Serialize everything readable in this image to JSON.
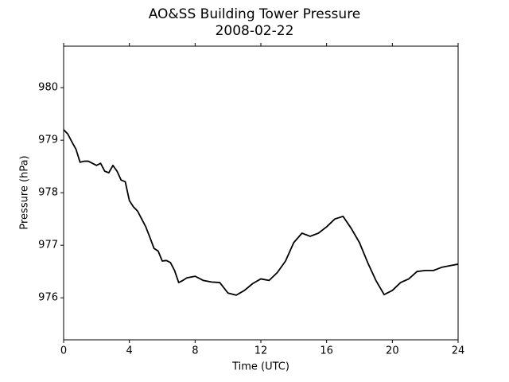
{
  "chart_data": {
    "type": "line",
    "title": "AO&SS Building Tower Pressure",
    "subtitle": "2008-02-22",
    "x_label": "Time (UTC)",
    "y_label": "Pressure (hPa)",
    "x": [
      0,
      0.25,
      0.5,
      0.75,
      1,
      1.25,
      1.5,
      2,
      2.25,
      2.5,
      2.75,
      3,
      3.25,
      3.5,
      3.75,
      4,
      4.25,
      4.5,
      4.75,
      5,
      5.25,
      5.5,
      5.75,
      6,
      6.25,
      6.5,
      6.75,
      7,
      7.25,
      7.5,
      8,
      8.5,
      9,
      9.5,
      10,
      10.5,
      11,
      11.5,
      12,
      12.5,
      13,
      13.5,
      14,
      14.5,
      15,
      15.5,
      16,
      16.5,
      17,
      17.5,
      18,
      18.5,
      19,
      19.5,
      20,
      20.5,
      21,
      21.5,
      22,
      22.5,
      23,
      23.5,
      24
    ],
    "series": [
      {
        "name": "Pressure",
        "color": "#000000",
        "values": [
          979.2,
          979.12,
          978.97,
          978.83,
          978.58,
          978.6,
          978.6,
          978.52,
          978.56,
          978.41,
          978.38,
          978.52,
          978.41,
          978.24,
          978.21,
          977.85,
          977.73,
          977.65,
          977.5,
          977.35,
          977.15,
          976.94,
          976.89,
          976.7,
          976.71,
          976.67,
          976.52,
          976.29,
          976.33,
          976.38,
          976.41,
          976.33,
          976.3,
          976.29,
          976.09,
          976.05,
          976.14,
          976.27,
          976.36,
          976.33,
          976.48,
          976.7,
          977.05,
          977.23,
          977.17,
          977.23,
          977.35,
          977.5,
          977.55,
          977.32,
          977.05,
          976.67,
          976.33,
          976.06,
          976.14,
          976.29,
          976.36,
          976.5,
          976.52,
          976.52,
          976.58,
          976.61,
          976.64
        ]
      }
    ],
    "xlim": [
      0,
      24
    ],
    "xticks": [
      0,
      4,
      8,
      12,
      16,
      20,
      24
    ],
    "ylim": [
      975.2,
      980.79
    ],
    "yticks": [
      976,
      977,
      978,
      979,
      980
    ],
    "grid": false
  }
}
